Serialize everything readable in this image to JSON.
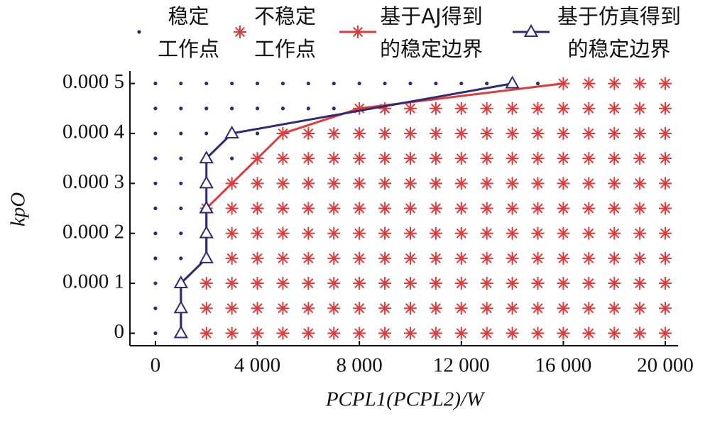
{
  "chart_data": {
    "type": "scatter",
    "xlabel": "PCPL1(PCPL2)/W",
    "ylabel": "kpO",
    "xlim": [
      -1000,
      20500
    ],
    "ylim": [
      -2.5e-05,
      0.000525
    ],
    "xticks": [
      0,
      {
        "value": 4000,
        "label": "4 000"
      },
      {
        "value": 8000,
        "label": "8 000"
      },
      {
        "value": 12000,
        "label": "12 000"
      },
      {
        "value": 16000,
        "label": "16 000"
      },
      {
        "value": 20000,
        "label": "20 000"
      }
    ],
    "yticks": [
      0,
      {
        "value": 0.0001,
        "label": "0.000 1"
      },
      {
        "value": 0.0002,
        "label": "0.000 2"
      },
      {
        "value": 0.0003,
        "label": "0.000 3"
      },
      {
        "value": 0.0004,
        "label": "0.000 4"
      },
      {
        "value": 0.0005,
        "label": "0.000 5"
      }
    ],
    "series": [
      {
        "name": "稳定\n工作点",
        "color": "#2e2a78",
        "marker": "dot",
        "line": false,
        "x": [
          0,
          0,
          0,
          0,
          1000,
          0,
          1000,
          0,
          1000,
          0,
          1000,
          0,
          1000,
          3000,
          0,
          1000,
          2000,
          4000,
          0,
          1000,
          2000,
          3000,
          4000,
          5000,
          6000,
          7000,
          0,
          1000,
          2000,
          3000,
          4000,
          5000,
          6000,
          7000,
          8000,
          9000,
          10000,
          11000,
          12000,
          13000,
          15000
        ],
        "values": [
          0,
          5e-05,
          0.0001,
          0.00015,
          0.00015,
          0.0002,
          0.0002,
          0.00025,
          0.00025,
          0.0003,
          0.0003,
          0.00035,
          0.00035,
          0.00035,
          0.0004,
          0.0004,
          0.0004,
          0.0004,
          0.00045,
          0.00045,
          0.00045,
          0.00045,
          0.00045,
          0.00045,
          0.00045,
          0.00045,
          0.0005,
          0.0005,
          0.0005,
          0.0005,
          0.0005,
          0.0005,
          0.0005,
          0.0005,
          0.0005,
          0.0005,
          0.0005,
          0.0005,
          0.0005,
          0.0005,
          0.0005
        ]
      },
      {
        "name": "不稳定\n工作点",
        "color": "#e03a3a",
        "marker": "asterisk",
        "line": false,
        "x": [
          2000,
          3000,
          4000,
          5000,
          6000,
          7000,
          8000,
          9000,
          10000,
          11000,
          12000,
          13000,
          14000,
          15000,
          16000,
          17000,
          18000,
          19000,
          20000,
          2000,
          3000,
          4000,
          5000,
          6000,
          7000,
          8000,
          9000,
          10000,
          11000,
          12000,
          13000,
          14000,
          15000,
          16000,
          17000,
          18000,
          19000,
          20000,
          2000,
          3000,
          4000,
          5000,
          6000,
          7000,
          8000,
          9000,
          10000,
          11000,
          12000,
          13000,
          14000,
          15000,
          16000,
          17000,
          18000,
          19000,
          20000,
          3000,
          4000,
          5000,
          6000,
          7000,
          8000,
          9000,
          10000,
          11000,
          12000,
          13000,
          14000,
          15000,
          16000,
          17000,
          18000,
          19000,
          20000,
          3000,
          4000,
          5000,
          6000,
          7000,
          8000,
          9000,
          10000,
          11000,
          12000,
          13000,
          14000,
          15000,
          16000,
          17000,
          18000,
          19000,
          20000,
          2000,
          3000,
          4000,
          5000,
          6000,
          7000,
          8000,
          9000,
          10000,
          11000,
          12000,
          13000,
          14000,
          15000,
          16000,
          17000,
          18000,
          19000,
          20000,
          3000,
          4000,
          5000,
          6000,
          7000,
          8000,
          9000,
          10000,
          11000,
          12000,
          13000,
          14000,
          15000,
          16000,
          17000,
          18000,
          19000,
          20000,
          4000,
          5000,
          6000,
          7000,
          8000,
          9000,
          10000,
          11000,
          12000,
          13000,
          14000,
          15000,
          16000,
          17000,
          18000,
          19000,
          20000,
          5000,
          6000,
          7000,
          8000,
          9000,
          10000,
          11000,
          12000,
          13000,
          14000,
          15000,
          16000,
          17000,
          18000,
          19000,
          20000,
          8000,
          9000,
          10000,
          11000,
          12000,
          13000,
          14000,
          15000,
          16000,
          17000,
          18000,
          19000,
          20000,
          16000,
          17000,
          18000,
          19000,
          20000
        ],
        "values": [
          0,
          0,
          0,
          0,
          0,
          0,
          0,
          0,
          0,
          0,
          0,
          0,
          0,
          0,
          0,
          0,
          0,
          0,
          0,
          5e-05,
          5e-05,
          5e-05,
          5e-05,
          5e-05,
          5e-05,
          5e-05,
          5e-05,
          5e-05,
          5e-05,
          5e-05,
          5e-05,
          5e-05,
          5e-05,
          5e-05,
          5e-05,
          5e-05,
          5e-05,
          5e-05,
          0.0001,
          0.0001,
          0.0001,
          0.0001,
          0.0001,
          0.0001,
          0.0001,
          0.0001,
          0.0001,
          0.0001,
          0.0001,
          0.0001,
          0.0001,
          0.0001,
          0.0001,
          0.0001,
          0.0001,
          0.0001,
          0.0001,
          0.00015,
          0.00015,
          0.00015,
          0.00015,
          0.00015,
          0.00015,
          0.00015,
          0.00015,
          0.00015,
          0.00015,
          0.00015,
          0.00015,
          0.00015,
          0.00015,
          0.00015,
          0.00015,
          0.00015,
          0.00015,
          0.0002,
          0.0002,
          0.0002,
          0.0002,
          0.0002,
          0.0002,
          0.0002,
          0.0002,
          0.0002,
          0.0002,
          0.0002,
          0.0002,
          0.0002,
          0.0002,
          0.0002,
          0.0002,
          0.0002,
          0.0002,
          0.00025,
          0.00025,
          0.00025,
          0.00025,
          0.00025,
          0.00025,
          0.00025,
          0.00025,
          0.00025,
          0.00025,
          0.00025,
          0.00025,
          0.00025,
          0.00025,
          0.00025,
          0.00025,
          0.00025,
          0.00025,
          0.00025,
          0.0003,
          0.0003,
          0.0003,
          0.0003,
          0.0003,
          0.0003,
          0.0003,
          0.0003,
          0.0003,
          0.0003,
          0.0003,
          0.0003,
          0.0003,
          0.0003,
          0.0003,
          0.0003,
          0.0003,
          0.0003,
          0.00035,
          0.00035,
          0.00035,
          0.00035,
          0.00035,
          0.00035,
          0.00035,
          0.00035,
          0.00035,
          0.00035,
          0.00035,
          0.00035,
          0.00035,
          0.00035,
          0.00035,
          0.00035,
          0.00035,
          0.0004,
          0.0004,
          0.0004,
          0.0004,
          0.0004,
          0.0004,
          0.0004,
          0.0004,
          0.0004,
          0.0004,
          0.0004,
          0.0004,
          0.0004,
          0.0004,
          0.0004,
          0.0004,
          0.00045,
          0.00045,
          0.00045,
          0.00045,
          0.00045,
          0.00045,
          0.00045,
          0.00045,
          0.00045,
          0.00045,
          0.00045,
          0.00045,
          0.00045,
          0.0005,
          0.0005,
          0.0005,
          0.0005,
          0.0005
        ]
      },
      {
        "name": "基于AJ得到\n的稳定边界",
        "color": "#e03a3a",
        "marker": "asterisk",
        "line": true,
        "x": [
          1000,
          1000,
          1000,
          2000,
          2000,
          2000,
          3000,
          4000,
          5000,
          8000,
          16000
        ],
        "values": [
          0,
          5e-05,
          0.0001,
          0.00015,
          0.0002,
          0.00025,
          0.0003,
          0.00035,
          0.0004,
          0.00045,
          0.0005
        ]
      },
      {
        "name": "基于仿真得到\n的稳定边界",
        "color": "#2e2a78",
        "marker": "triangle",
        "line": true,
        "x": [
          1000,
          1000,
          1000,
          2000,
          2000,
          2000,
          2000,
          2000,
          3000,
          14000
        ],
        "values": [
          0,
          5e-05,
          0.0001,
          0.00015,
          0.0002,
          0.00025,
          0.0003,
          0.00035,
          0.0004,
          0.0005
        ]
      }
    ]
  }
}
